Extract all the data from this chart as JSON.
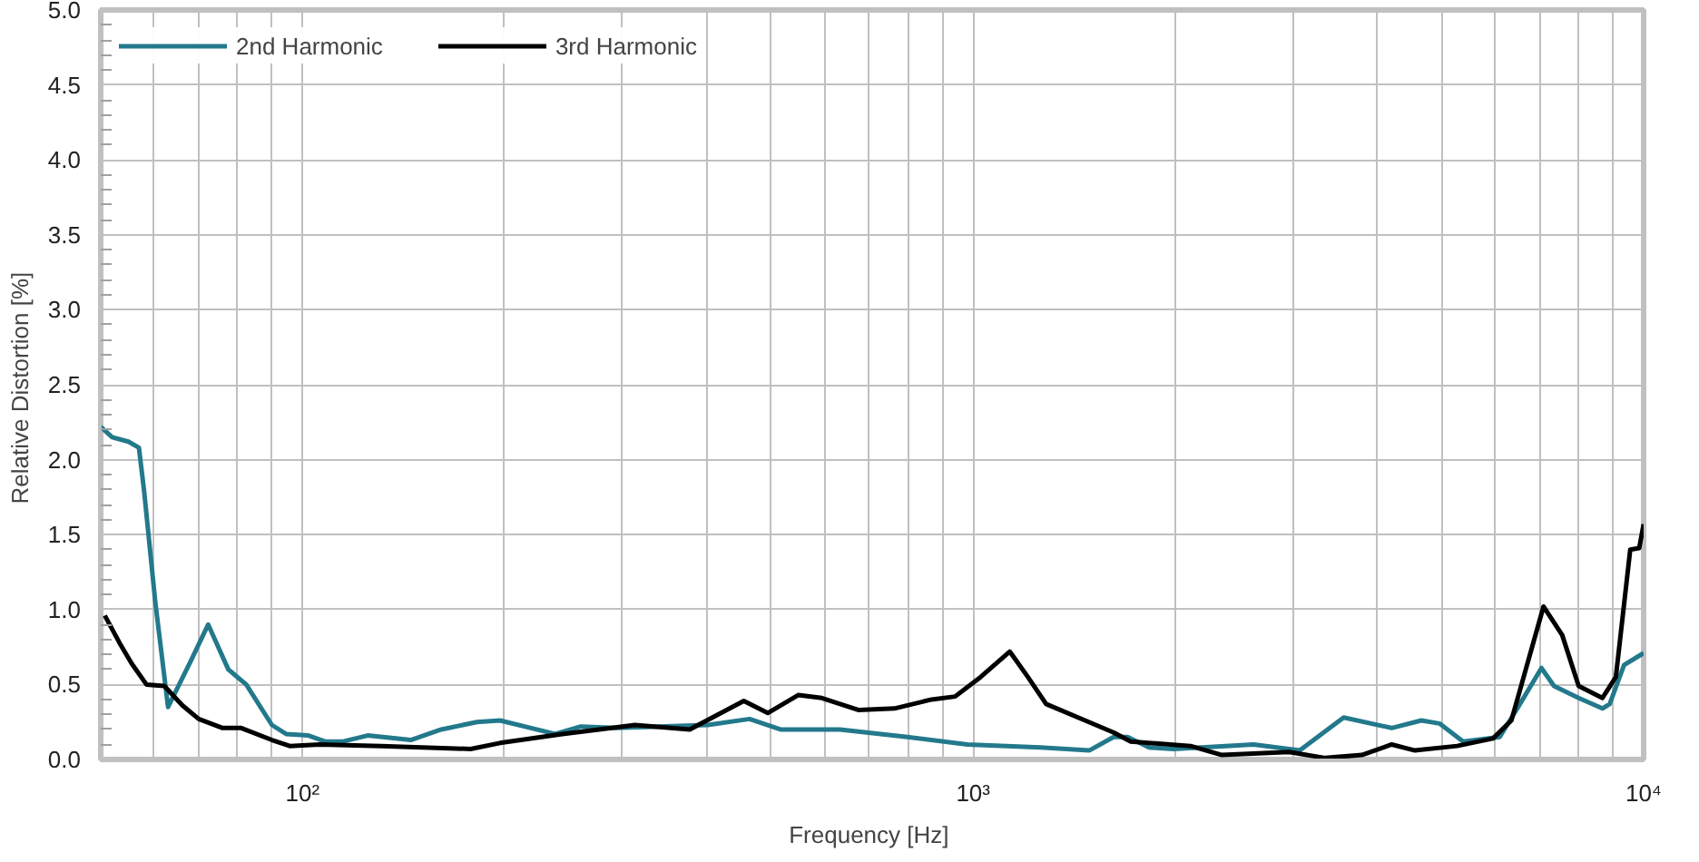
{
  "chart_data": {
    "type": "line",
    "xlabel": "Frequency  [Hz]",
    "ylabel": "Relative Distortion  [%]",
    "log": "x",
    "grid": true,
    "legend": "top",
    "line_style": "solid",
    "xlim": [
      50,
      10000
    ],
    "xticks": [
      {
        "value": 100,
        "label": "10²"
      },
      {
        "value": 1000,
        "label": "10³"
      },
      {
        "value": 10000,
        "label": "10⁴"
      }
    ],
    "ylim": [
      0,
      5
    ],
    "yticks": [
      {
        "value": 0,
        "label": "0.0"
      },
      {
        "value": 0.5,
        "label": "0.5"
      },
      {
        "value": 1,
        "label": "1.0"
      },
      {
        "value": 1.5,
        "label": "1.5"
      },
      {
        "value": 2,
        "label": "2.0"
      },
      {
        "value": 2.5,
        "label": "2.5"
      },
      {
        "value": 3,
        "label": "3.0"
      },
      {
        "value": 3.5,
        "label": "3.5"
      },
      {
        "value": 4,
        "label": "4.0"
      },
      {
        "value": 4.5,
        "label": "4.5"
      },
      {
        "value": 5,
        "label": "5.0"
      }
    ],
    "series": [
      {
        "name": "2nd Harmonic",
        "color": "#23798c",
        "x": [
          50,
          52,
          55,
          57,
          58,
          60.3,
          63,
          68,
          72.3,
          77.5,
          82.4,
          90,
          94.5,
          102,
          108,
          115,
          125,
          145,
          161,
          182,
          197,
          238,
          260,
          294,
          402,
          464,
          516,
          633,
          798,
          980,
          1260,
          1490,
          1620,
          1700,
          1830,
          1990,
          2620,
          3070,
          3570,
          4210,
          4660,
          4960,
          5380,
          6100,
          6500,
          7040,
          7350,
          8000,
          8680,
          8900,
          9350,
          10000
        ],
        "values": [
          2.22,
          2.15,
          2.12,
          2.08,
          1.8,
          1.05,
          0.35,
          0.65,
          0.9,
          0.6,
          0.5,
          0.23,
          0.17,
          0.16,
          0.12,
          0.12,
          0.16,
          0.13,
          0.2,
          0.25,
          0.26,
          0.17,
          0.22,
          0.21,
          0.23,
          0.27,
          0.2,
          0.2,
          0.15,
          0.1,
          0.08,
          0.06,
          0.15,
          0.15,
          0.08,
          0.07,
          0.1,
          0.06,
          0.28,
          0.21,
          0.26,
          0.24,
          0.12,
          0.15,
          0.35,
          0.61,
          0.49,
          0.41,
          0.34,
          0.37,
          0.63,
          0.71
        ]
      },
      {
        "name": "3rd Harmonic",
        "color": "#000000",
        "x": [
          50.7,
          53.3,
          55.6,
          58.5,
          62.2,
          66.2,
          70,
          76,
          81,
          90,
          95.7,
          106,
          131,
          178,
          197,
          244,
          300,
          313,
          378,
          455,
          494,
          549,
          595,
          674,
          763,
          867,
          940,
          1026,
          1134,
          1207,
          1285,
          1488,
          1620,
          1718,
          2110,
          2350,
          2960,
          3350,
          3800,
          4210,
          4560,
          5270,
          5960,
          6350,
          7090,
          7560,
          8000,
          8680,
          9090,
          9550,
          9850,
          10000
        ],
        "values": [
          0.96,
          0.78,
          0.64,
          0.5,
          0.49,
          0.36,
          0.27,
          0.21,
          0.21,
          0.13,
          0.09,
          0.1,
          0.09,
          0.07,
          0.11,
          0.17,
          0.22,
          0.23,
          0.2,
          0.39,
          0.31,
          0.43,
          0.41,
          0.33,
          0.34,
          0.4,
          0.42,
          0.55,
          0.72,
          0.55,
          0.37,
          0.25,
          0.18,
          0.12,
          0.09,
          0.03,
          0.05,
          0.01,
          0.03,
          0.1,
          0.06,
          0.09,
          0.14,
          0.26,
          1.02,
          0.83,
          0.49,
          0.41,
          0.55,
          1.4,
          1.41,
          1.57
        ]
      }
    ]
  }
}
